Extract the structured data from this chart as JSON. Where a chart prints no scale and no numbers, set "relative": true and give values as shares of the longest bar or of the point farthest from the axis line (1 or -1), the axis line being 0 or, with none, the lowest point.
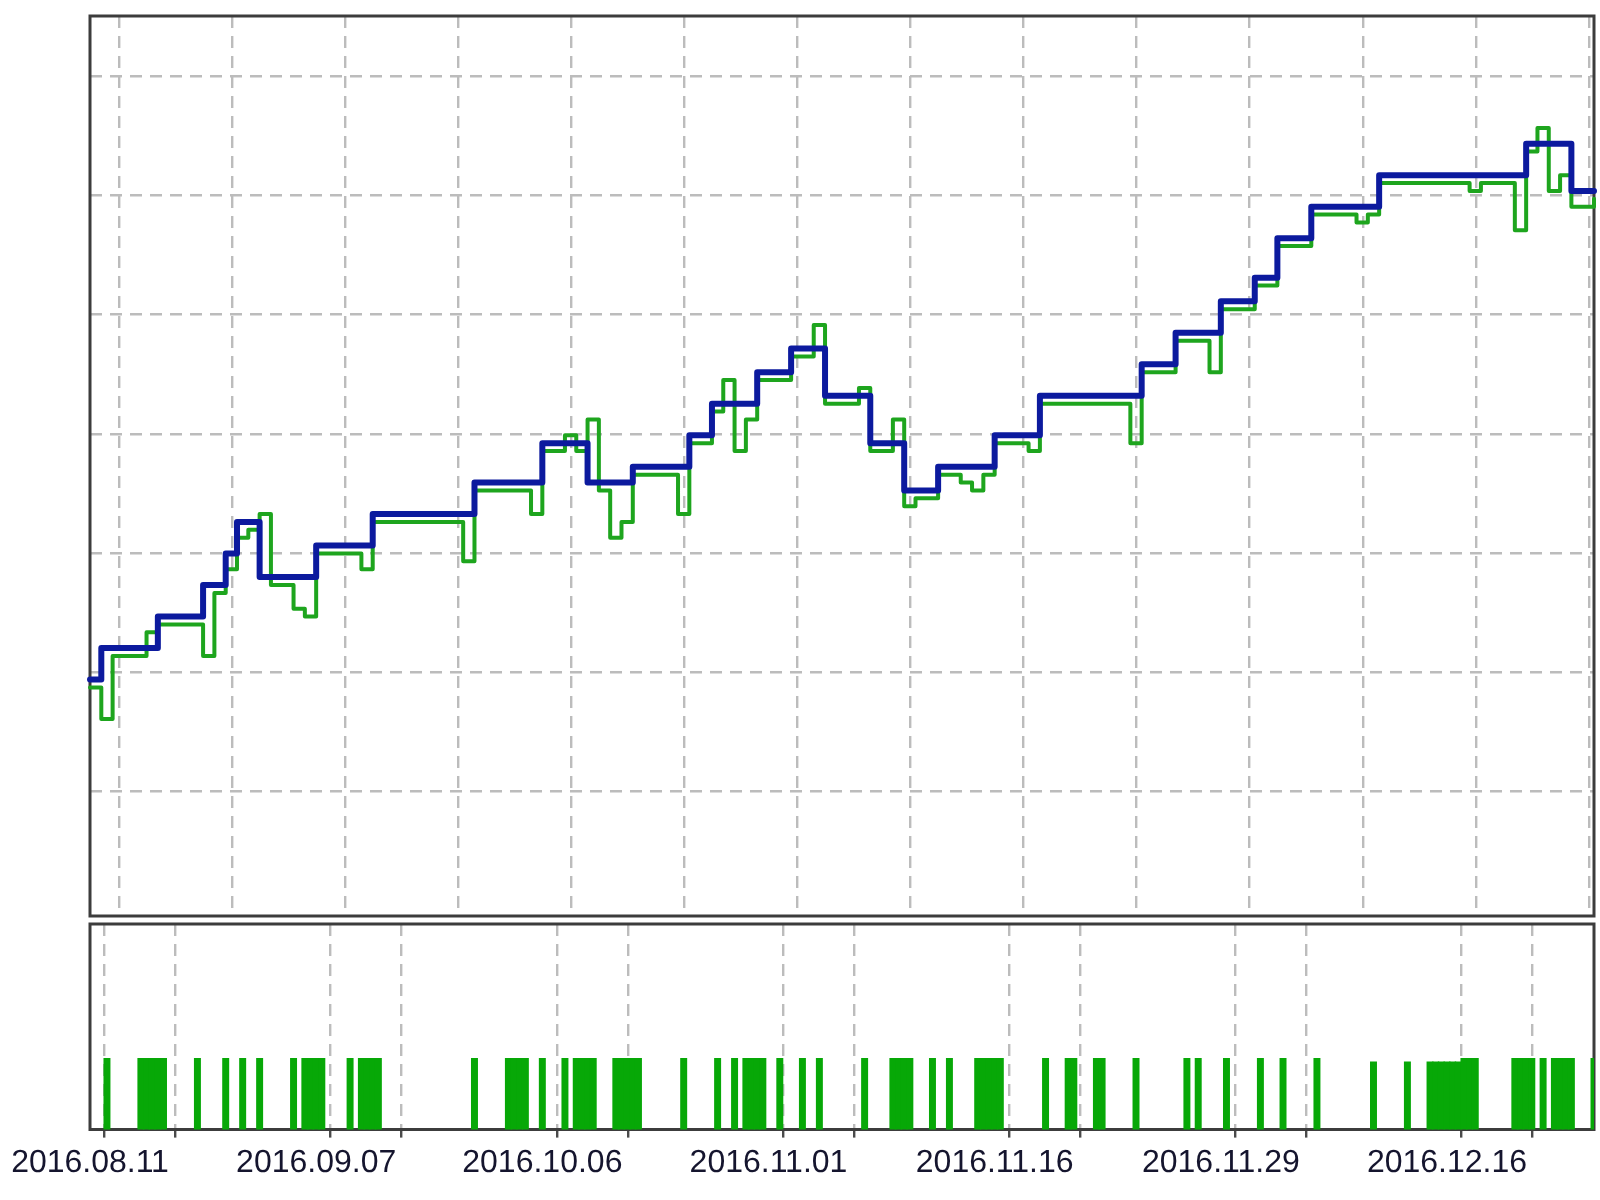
{
  "chart_data": [
    {
      "type": "step",
      "relative": true,
      "grid": true,
      "tick_labels": false,
      "categories": [
        "2016.08.11",
        null,
        null,
        null,
        null,
        null,
        null,
        null,
        null,
        null,
        null,
        null,
        null,
        null,
        null,
        null,
        null,
        null,
        null,
        null,
        "2016.09.07",
        null,
        null,
        null,
        null,
        null,
        null,
        null,
        null,
        null,
        null,
        null,
        null,
        null,
        null,
        null,
        null,
        null,
        null,
        null,
        "2016.10.06",
        null,
        null,
        null,
        null,
        null,
        null,
        null,
        null,
        null,
        null,
        null,
        null,
        null,
        null,
        null,
        null,
        null,
        null,
        null,
        "2016.11.01",
        null,
        null,
        null,
        null,
        null,
        null,
        null,
        null,
        null,
        null,
        null,
        null,
        null,
        null,
        null,
        null,
        null,
        null,
        null,
        "2016.11.16",
        null,
        null,
        null,
        null,
        null,
        null,
        null,
        null,
        null,
        null,
        null,
        null,
        null,
        null,
        null,
        null,
        null,
        null,
        null,
        "2016.11.29",
        null,
        null,
        null,
        null,
        null,
        null,
        null,
        null,
        null,
        null,
        null,
        null,
        null,
        null,
        null,
        null,
        null,
        null,
        null,
        "2016.12.16",
        null,
        null,
        null,
        null,
        null,
        null,
        null,
        null,
        null,
        null,
        null,
        null,
        null
      ],
      "series": [
        {
          "color": "#0c1a9e",
          "values": [
            0.3,
            0.34,
            0.34,
            0.34,
            0.34,
            0.34,
            0.38,
            0.38,
            0.38,
            0.38,
            0.42,
            0.42,
            0.46,
            0.5,
            0.5,
            0.43,
            0.43,
            0.43,
            0.43,
            0.43,
            0.47,
            0.47,
            0.47,
            0.47,
            0.47,
            0.51,
            0.51,
            0.51,
            0.51,
            0.51,
            0.51,
            0.51,
            0.51,
            0.51,
            0.55,
            0.55,
            0.55,
            0.55,
            0.55,
            0.55,
            0.6,
            0.6,
            0.6,
            0.6,
            0.55,
            0.55,
            0.55,
            0.55,
            0.57,
            0.57,
            0.57,
            0.57,
            0.57,
            0.61,
            0.61,
            0.65,
            0.65,
            0.65,
            0.65,
            0.69,
            0.69,
            0.69,
            0.72,
            0.72,
            0.72,
            0.66,
            0.66,
            0.66,
            0.66,
            0.6,
            0.6,
            0.6,
            0.54,
            0.54,
            0.54,
            0.57,
            0.57,
            0.57,
            0.57,
            0.57,
            0.61,
            0.61,
            0.61,
            0.61,
            0.66,
            0.66,
            0.66,
            0.66,
            0.66,
            0.66,
            0.66,
            0.66,
            0.66,
            0.7,
            0.7,
            0.7,
            0.74,
            0.74,
            0.74,
            0.74,
            0.78,
            0.78,
            0.78,
            0.81,
            0.81,
            0.86,
            0.86,
            0.86,
            0.9,
            0.9,
            0.9,
            0.9,
            0.9,
            0.9,
            0.94,
            0.94,
            0.94,
            0.94,
            0.94,
            0.94,
            0.94,
            0.94,
            0.94,
            0.94,
            0.94,
            0.94,
            0.94,
            0.98,
            0.98,
            0.98,
            0.98,
            0.92,
            0.92,
            0.92
          ]
        },
        {
          "color": "#1ea51e",
          "values": [
            0.29,
            0.25,
            0.33,
            0.33,
            0.33,
            0.36,
            0.37,
            0.37,
            0.37,
            0.37,
            0.33,
            0.41,
            0.44,
            0.48,
            0.49,
            0.51,
            0.42,
            0.42,
            0.39,
            0.38,
            0.46,
            0.46,
            0.46,
            0.46,
            0.44,
            0.5,
            0.5,
            0.5,
            0.5,
            0.5,
            0.5,
            0.5,
            0.5,
            0.45,
            0.54,
            0.54,
            0.54,
            0.54,
            0.54,
            0.51,
            0.59,
            0.59,
            0.61,
            0.59,
            0.63,
            0.54,
            0.48,
            0.5,
            0.56,
            0.56,
            0.56,
            0.56,
            0.51,
            0.6,
            0.6,
            0.64,
            0.68,
            0.59,
            0.63,
            0.68,
            0.68,
            0.68,
            0.71,
            0.71,
            0.75,
            0.65,
            0.65,
            0.65,
            0.67,
            0.59,
            0.59,
            0.63,
            0.52,
            0.53,
            0.53,
            0.56,
            0.56,
            0.55,
            0.54,
            0.56,
            0.6,
            0.6,
            0.6,
            0.59,
            0.65,
            0.65,
            0.65,
            0.65,
            0.65,
            0.65,
            0.65,
            0.65,
            0.6,
            0.69,
            0.69,
            0.69,
            0.73,
            0.73,
            0.73,
            0.69,
            0.77,
            0.77,
            0.77,
            0.8,
            0.8,
            0.85,
            0.85,
            0.85,
            0.89,
            0.89,
            0.89,
            0.89,
            0.88,
            0.89,
            0.93,
            0.93,
            0.93,
            0.93,
            0.93,
            0.93,
            0.93,
            0.93,
            0.92,
            0.93,
            0.93,
            0.93,
            0.87,
            0.97,
            1,
            0.92,
            0.94,
            0.9,
            0.9,
            0.91
          ]
        }
      ]
    },
    {
      "type": "bar",
      "relative": true,
      "grid": "x",
      "tick_labels": "x",
      "color": "#07a807",
      "categories": [
        "2016.08.11",
        null,
        null,
        null,
        null,
        null,
        null,
        null,
        null,
        null,
        null,
        null,
        null,
        null,
        null,
        null,
        null,
        null,
        null,
        null,
        null,
        null,
        null,
        null,
        null,
        null,
        null,
        null,
        null,
        null,
        null,
        null,
        null,
        null,
        null,
        null,
        null,
        null,
        null,
        null,
        "2016.09.07",
        null,
        null,
        null,
        null,
        null,
        null,
        null,
        null,
        null,
        null,
        null,
        null,
        null,
        null,
        null,
        null,
        null,
        null,
        null,
        null,
        null,
        null,
        null,
        null,
        null,
        null,
        null,
        null,
        null,
        null,
        null,
        null,
        null,
        null,
        null,
        null,
        null,
        null,
        null,
        "2016.10.06",
        null,
        null,
        null,
        null,
        null,
        null,
        null,
        null,
        null,
        null,
        null,
        null,
        null,
        null,
        null,
        null,
        null,
        null,
        null,
        null,
        null,
        null,
        null,
        null,
        null,
        null,
        null,
        null,
        null,
        null,
        null,
        null,
        null,
        null,
        null,
        null,
        null,
        null,
        null,
        "2016.11.01",
        null,
        null,
        null,
        null,
        null,
        null,
        null,
        null,
        null,
        null,
        null,
        null,
        null,
        null,
        null,
        null,
        null,
        null,
        null,
        null,
        null,
        null,
        null,
        null,
        null,
        null,
        null,
        null,
        null,
        null,
        null,
        null,
        null,
        null,
        null,
        null,
        null,
        null,
        null,
        "2016.11.16",
        null,
        null,
        null,
        null,
        null,
        null,
        null,
        null,
        null,
        null,
        null,
        null,
        null,
        null,
        null,
        null,
        null,
        null,
        null,
        null,
        null,
        null,
        null,
        null,
        null,
        null,
        null,
        null,
        null,
        null,
        null,
        null,
        null,
        null,
        null,
        null,
        null,
        null,
        null,
        "2016.11.29",
        null,
        null,
        null,
        null,
        null,
        null,
        null,
        null,
        null,
        null,
        null,
        null,
        null,
        null,
        null,
        null,
        null,
        null,
        null,
        null,
        null,
        null,
        null,
        null,
        null,
        null,
        null,
        null,
        null,
        null,
        null,
        null,
        null,
        null,
        null,
        null,
        null,
        null,
        null,
        "2016.12.16",
        null,
        null,
        null,
        null,
        null,
        null,
        null,
        null,
        null,
        null,
        null,
        null,
        null,
        null,
        null,
        null,
        null,
        null,
        null,
        null,
        null,
        null,
        null,
        null,
        null,
        null
      ],
      "values": [
        null,
        null,
        null,
        1,
        null,
        null,
        null,
        null,
        null,
        1,
        1,
        1,
        1,
        1,
        null,
        null,
        null,
        null,
        null,
        1,
        null,
        null,
        null,
        null,
        1,
        null,
        null,
        1,
        null,
        null,
        1,
        null,
        null,
        null,
        null,
        null,
        1,
        null,
        1,
        1,
        1,
        1,
        null,
        null,
        null,
        null,
        1,
        null,
        1,
        1,
        1,
        1,
        null,
        null,
        null,
        null,
        null,
        null,
        null,
        null,
        null,
        null,
        null,
        null,
        null,
        null,
        null,
        null,
        1,
        null,
        null,
        null,
        null,
        null,
        1,
        1,
        1,
        1,
        null,
        null,
        1,
        null,
        null,
        null,
        1,
        null,
        1,
        1,
        1,
        1,
        null,
        null,
        null,
        1,
        1,
        1,
        1,
        1,
        null,
        null,
        null,
        null,
        null,
        null,
        null,
        1,
        null,
        null,
        null,
        null,
        null,
        1,
        null,
        null,
        1,
        null,
        1,
        1,
        1,
        1,
        null,
        null,
        1,
        null,
        null,
        null,
        1,
        null,
        null,
        1,
        null,
        null,
        null,
        null,
        null,
        null,
        null,
        1,
        null,
        null,
        null,
        null,
        1,
        1,
        1,
        1,
        null,
        null,
        null,
        1,
        null,
        null,
        1,
        null,
        null,
        null,
        null,
        1,
        1,
        1,
        1,
        1,
        null,
        null,
        null,
        null,
        null,
        null,
        null,
        1,
        null,
        null,
        null,
        1,
        1,
        null,
        null,
        null,
        1,
        1,
        null,
        null,
        null,
        null,
        null,
        1,
        null,
        null,
        null,
        null,
        null,
        null,
        null,
        null,
        1,
        null,
        1,
        null,
        null,
        null,
        null,
        1,
        null,
        null,
        null,
        null,
        null,
        1,
        null,
        null,
        null,
        1,
        null,
        null,
        null,
        null,
        null,
        1,
        null,
        null,
        null,
        null,
        null,
        null,
        null,
        null,
        null,
        0.95,
        null,
        null,
        null,
        null,
        null,
        0.95,
        null,
        null,
        null,
        0.95,
        0.95,
        0.95,
        0.95,
        0.95,
        0.95,
        1,
        1,
        1,
        null,
        null,
        null,
        null,
        null,
        null,
        1,
        1,
        1,
        1,
        null,
        1,
        null,
        1,
        1,
        1,
        1,
        null,
        null,
        null,
        1
      ]
    }
  ]
}
